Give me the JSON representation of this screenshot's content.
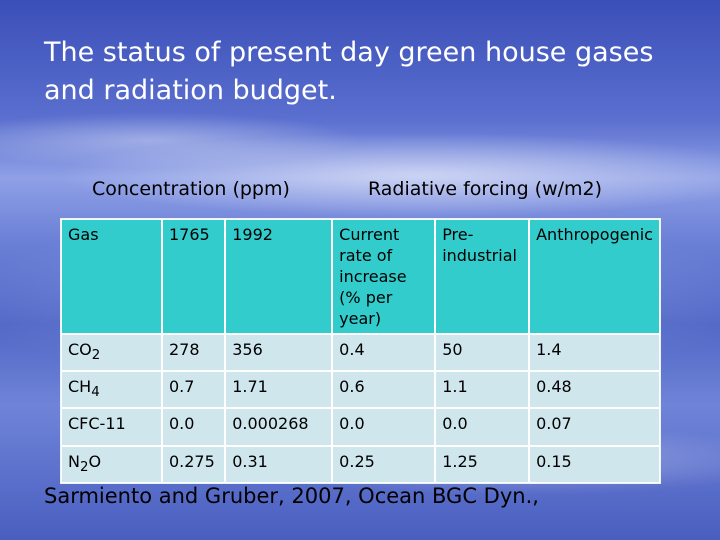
{
  "slide": {
    "title": "The status of present day green house gases and radiation budget.",
    "header_concentration": "Concentration (ppm)",
    "header_forcing": "Radiative forcing (w/m2)",
    "citation": "Sarmiento and Gruber, 2007, Ocean BGC Dyn.,"
  },
  "table": {
    "columns": [
      "Gas",
      "1765",
      "1992",
      "Current rate of increase (% per year)",
      "Pre-industrial",
      "Anthropogenic"
    ],
    "rows": [
      {
        "gas": "CO",
        "sub": "2",
        "c1765": "278",
        "c1992": "356",
        "rate": "0.4",
        "pre": "50",
        "anth": "1.4"
      },
      {
        "gas": "CH",
        "sub": "4",
        "c1765": "0.7",
        "c1992": "1.71",
        "rate": "0.6",
        "pre": "1.1",
        "anth": "0.48"
      },
      {
        "gas": "CFC-11",
        "sub": "",
        "c1765": "0.0",
        "c1992": "0.000268",
        "rate": "0.0",
        "pre": "0.0",
        "anth": "0.07"
      },
      {
        "gas": "N",
        "sub": "2",
        "gas_suffix": "O",
        "c1765": "0.275",
        "c1992": "0.31",
        "rate": "0.25",
        "pre": "1.25",
        "anth": "0.15"
      }
    ]
  }
}
